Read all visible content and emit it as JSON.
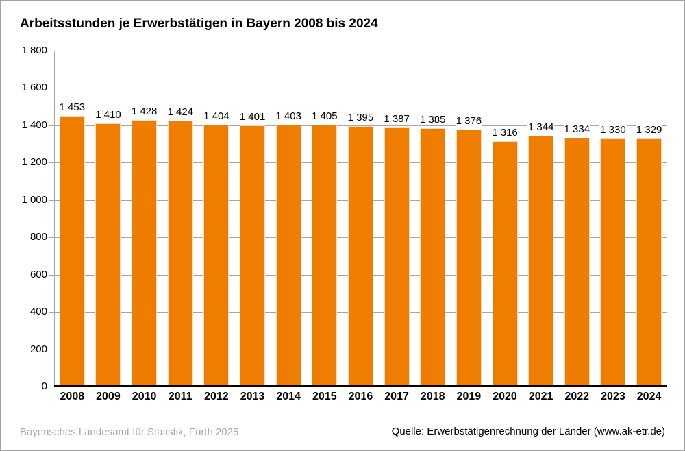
{
  "chart_data": {
    "type": "bar",
    "title": "Arbeitsstunden je Erwerbstätigen in Bayern 2008 bis 2024",
    "categories": [
      "2008",
      "2009",
      "2010",
      "2011",
      "2012",
      "2013",
      "2014",
      "2015",
      "2016",
      "2017",
      "2018",
      "2019",
      "2020",
      "2021",
      "2022",
      "2023",
      "2024"
    ],
    "values": [
      1453,
      1410,
      1428,
      1424,
      1404,
      1401,
      1403,
      1405,
      1395,
      1387,
      1385,
      1376,
      1316,
      1344,
      1334,
      1330,
      1329
    ],
    "xlabel": "",
    "ylabel": "",
    "ylim": [
      0,
      1800
    ],
    "y_tick_step": 200,
    "grid": true,
    "legend": "none",
    "bar_color": "#ee7d00",
    "gridline_color": "#a6a6a6",
    "number_format": "space-thousands"
  },
  "footer": {
    "publisher": "Bayerisches Landesamt für Statistik, Fürth 2025",
    "source": "Quelle: Erwerbstätigenrechnung der Länder (www.ak-etr.de)"
  }
}
